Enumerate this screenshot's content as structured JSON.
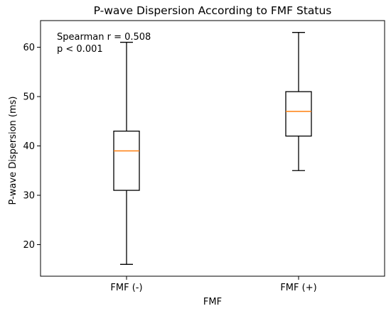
{
  "chart_data": {
    "type": "box",
    "title": "P-wave Dispersion According to FMF Status",
    "xlabel": "FMF",
    "ylabel": "P-wave Dispersion (ms)",
    "ylim": [
      13.6,
      65.4
    ],
    "yticks": [
      20,
      30,
      40,
      50,
      60
    ],
    "grid": false,
    "annotation": {
      "lines": [
        "Spearman r = 0.508",
        "p < 0.001"
      ],
      "placement": "top-left"
    },
    "categories": [
      "FMF (-)",
      "FMF (+)"
    ],
    "boxes": [
      {
        "category": "FMF (-)",
        "whisker_low": 16,
        "q1": 31,
        "median": 39,
        "q3": 43,
        "whisker_high": 61
      },
      {
        "category": "FMF (+)",
        "whisker_low": 35,
        "q1": 42,
        "median": 47,
        "q3": 51,
        "whisker_high": 63
      }
    ],
    "colors": {
      "median": "#ff7f0e",
      "box": "#000000"
    }
  }
}
